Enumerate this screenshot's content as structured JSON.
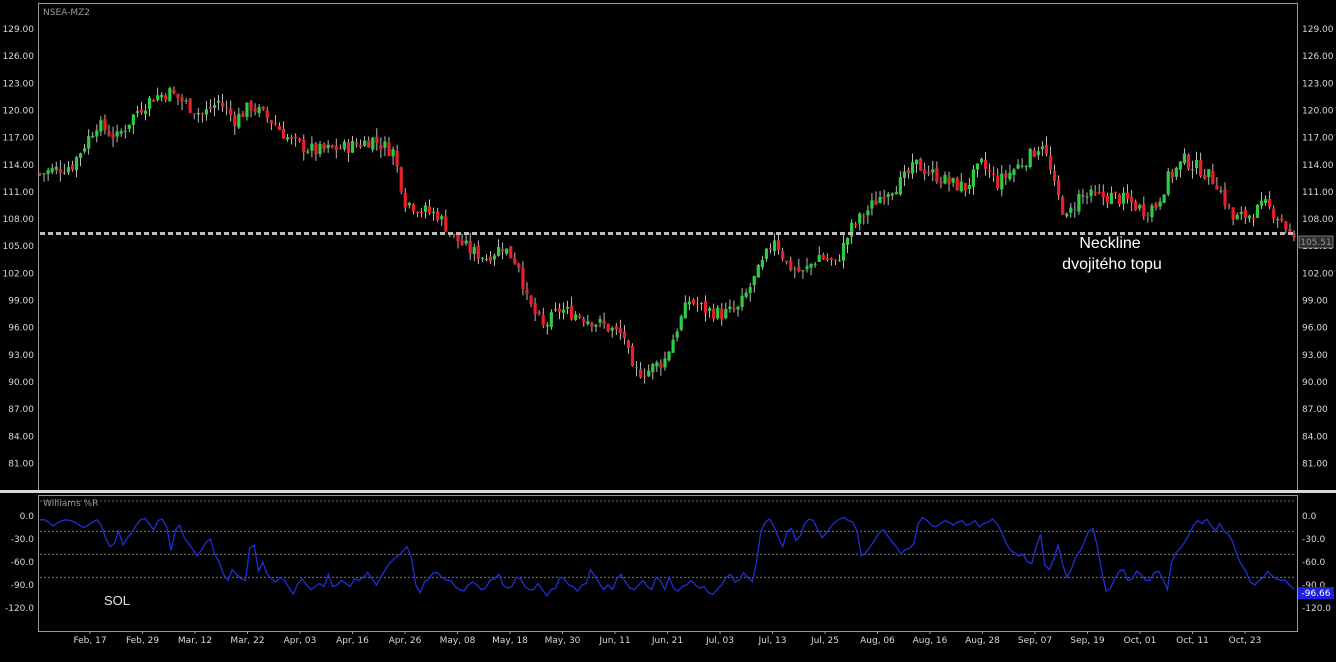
{
  "colors": {
    "background": "#000000",
    "frame": "#9a9a9a",
    "up_candle": "#2ecc40",
    "down_candle": "#e8202a",
    "neckline": "#bdbdbd",
    "williams_line": "#1f2fd6",
    "last_price_tag": "#1f1fe0"
  },
  "chart_data": [
    {
      "type": "candlestick",
      "title": "NSEA-MZ2",
      "yticks": [
        "129.00",
        "126.00",
        "123.00",
        "120.00",
        "117.00",
        "114.00",
        "111.00",
        "108.00",
        "105.00",
        "102.00",
        "99.00",
        "96.00",
        "93.00",
        "90.00",
        "87.00",
        "84.00",
        "81.00"
      ],
      "ylim": [
        78.5,
        131.5
      ],
      "xticks": [
        "Feb, 17",
        "Feb, 29",
        "Mar, 12",
        "Mar, 22",
        "Apr, 03",
        "Apr, 16",
        "Apr, 26",
        "May, 08",
        "May, 18",
        "May, 30",
        "Jun, 11",
        "Jun, 21",
        "Jul, 03",
        "Jul, 13",
        "Jul, 25",
        "Aug, 06",
        "Aug, 16",
        "Aug, 28",
        "Sep, 07",
        "Sep, 19",
        "Oct, 01",
        "Oct, 11",
        "Oct, 23"
      ],
      "last_price_label": "105.51",
      "neckline_value": 106.4,
      "annotation": [
        "Neckline",
        "dvojitého topu"
      ],
      "series_path": [
        [
          0,
          113.0
        ],
        [
          8,
          114.0
        ],
        [
          14,
          118.5
        ],
        [
          19,
          117.0
        ],
        [
          24,
          120.0
        ],
        [
          28,
          121.5
        ],
        [
          32,
          122.0
        ],
        [
          40,
          119.5
        ],
        [
          44,
          121.0
        ],
        [
          48,
          119.0
        ],
        [
          52,
          120.5
        ],
        [
          58,
          118.5
        ],
        [
          62,
          116.5
        ],
        [
          68,
          115.5
        ],
        [
          76,
          116.0
        ],
        [
          82,
          116.8
        ],
        [
          87,
          115.5
        ],
        [
          90,
          110.0
        ],
        [
          94,
          109.0
        ],
        [
          98,
          108.5
        ],
        [
          102,
          106.0
        ],
        [
          106,
          104.5
        ],
        [
          110,
          103.8
        ],
        [
          114,
          105.0
        ],
        [
          118,
          103.0
        ],
        [
          120,
          99.0
        ],
        [
          124,
          96.0
        ],
        [
          128,
          98.0
        ],
        [
          132,
          97.5
        ],
        [
          136,
          96.8
        ],
        [
          140,
          96.0
        ],
        [
          144,
          95.0
        ],
        [
          146,
          91.0
        ],
        [
          150,
          91.3
        ],
        [
          154,
          92.5
        ],
        [
          157,
          96.0
        ],
        [
          160,
          99.0
        ],
        [
          164,
          98.0
        ],
        [
          168,
          97.5
        ],
        [
          172,
          98.0
        ],
        [
          175,
          100.5
        ],
        [
          178,
          103.0
        ],
        [
          181,
          106.0
        ],
        [
          184,
          103.0
        ],
        [
          188,
          102.0
        ],
        [
          192,
          104.0
        ],
        [
          196,
          103.0
        ],
        [
          200,
          107.0
        ],
        [
          204,
          109.0
        ],
        [
          208,
          111.0
        ],
        [
          212,
          112.0
        ],
        [
          216,
          114.0
        ],
        [
          220,
          113.0
        ],
        [
          224,
          112.0
        ],
        [
          228,
          111.5
        ],
        [
          232,
          114.0
        ],
        [
          236,
          112.0
        ],
        [
          240,
          113.5
        ],
        [
          244,
          115.0
        ],
        [
          247,
          116.5
        ],
        [
          250,
          111.5
        ],
        [
          253,
          108.0
        ],
        [
          256,
          110.5
        ],
        [
          260,
          110.5
        ],
        [
          264,
          110.5
        ],
        [
          268,
          110.0
        ],
        [
          272,
          109.0
        ],
        [
          275,
          109.5
        ],
        [
          278,
          112.5
        ],
        [
          282,
          114.5
        ],
        [
          286,
          113.5
        ],
        [
          290,
          112.0
        ],
        [
          294,
          108.0
        ],
        [
          298,
          108.5
        ],
        [
          302,
          109.5
        ],
        [
          306,
          108.0
        ],
        [
          309,
          105.5
        ]
      ]
    },
    {
      "type": "line",
      "title": "Williams %R",
      "annotation": "SOL",
      "yticks": [
        "0.0",
        "-30.0",
        "-60.0",
        "-90.0",
        "-120.0"
      ],
      "ylim": [
        -140,
        18
      ],
      "last_value_label": "-96.66",
      "values": [
        -5,
        -5,
        -8,
        -13,
        -9,
        -6,
        -5,
        -6,
        -8,
        -12,
        -15,
        -12,
        -8,
        -5,
        -12,
        -28,
        -40,
        -36,
        -20,
        -38,
        -28,
        -22,
        -12,
        -5,
        -3,
        -10,
        -18,
        -6,
        -4,
        -14,
        -45,
        -18,
        -12,
        -28,
        -36,
        -44,
        -52,
        -44,
        -34,
        -30,
        -50,
        -60,
        -76,
        -84,
        -70,
        -76,
        -82,
        -84,
        -42,
        -38,
        -72,
        -60,
        -76,
        -82,
        -86,
        -80,
        -84,
        -94,
        -102,
        -88,
        -82,
        -90,
        -96,
        -92,
        -88,
        -92,
        -76,
        -92,
        -90,
        -84,
        -88,
        -92,
        -82,
        -84,
        -80,
        -74,
        -82,
        -90,
        -80,
        -70,
        -62,
        -56,
        -52,
        -46,
        -40,
        -54,
        -90,
        -100,
        -86,
        -82,
        -74,
        -74,
        -80,
        -84,
        -84,
        -92,
        -96,
        -98,
        -90,
        -86,
        -90,
        -96,
        -94,
        -84,
        -82,
        -76,
        -90,
        -94,
        -92,
        -80,
        -82,
        -92,
        -96,
        -96,
        -88,
        -96,
        -104,
        -96,
        -94,
        -80,
        -82,
        -90,
        -92,
        -98,
        -90,
        -88,
        -70,
        -78,
        -88,
        -96,
        -90,
        -96,
        -82,
        -76,
        -86,
        -94,
        -96,
        -90,
        -84,
        -92,
        -96,
        -80,
        -84,
        -96,
        -80,
        -94,
        -98,
        -92,
        -90,
        -84,
        -90,
        -94,
        -92,
        -100,
        -102,
        -96,
        -90,
        -80,
        -76,
        -86,
        -84,
        -74,
        -80,
        -86,
        -60,
        -20,
        -8,
        -4,
        -14,
        -28,
        -40,
        -20,
        -16,
        -32,
        -26,
        -10,
        -4,
        -6,
        -18,
        -28,
        -22,
        -14,
        -8,
        -4,
        -2,
        -6,
        -8,
        -20,
        -52,
        -48,
        -40,
        -32,
        -22,
        -18,
        -26,
        -34,
        -40,
        -50,
        -44,
        -42,
        -36,
        -10,
        -2,
        -6,
        -12,
        -14,
        -10,
        -6,
        -8,
        -12,
        -8,
        -6,
        -12,
        -10,
        -6,
        -14,
        -10,
        -8,
        -4,
        -10,
        -20,
        -34,
        -44,
        -48,
        -52,
        -50,
        -60,
        -62,
        -40,
        -24,
        -64,
        -70,
        -56,
        -38,
        -62,
        -80,
        -70,
        -54,
        -46,
        -34,
        -20,
        -16,
        -40,
        -72,
        -98,
        -94,
        -82,
        -72,
        -70,
        -84,
        -82,
        -72,
        -76,
        -84,
        -84,
        -74,
        -72,
        -82,
        -96,
        -60,
        -48,
        -42,
        -34,
        -24,
        -12,
        -6,
        -10,
        -4,
        -12,
        -20,
        -10,
        -20,
        -24,
        -34,
        -52,
        -64,
        -72,
        -86,
        -90,
        -84,
        -80,
        -72,
        -78,
        -82,
        -84,
        -84,
        -90,
        -96
      ]
    }
  ]
}
